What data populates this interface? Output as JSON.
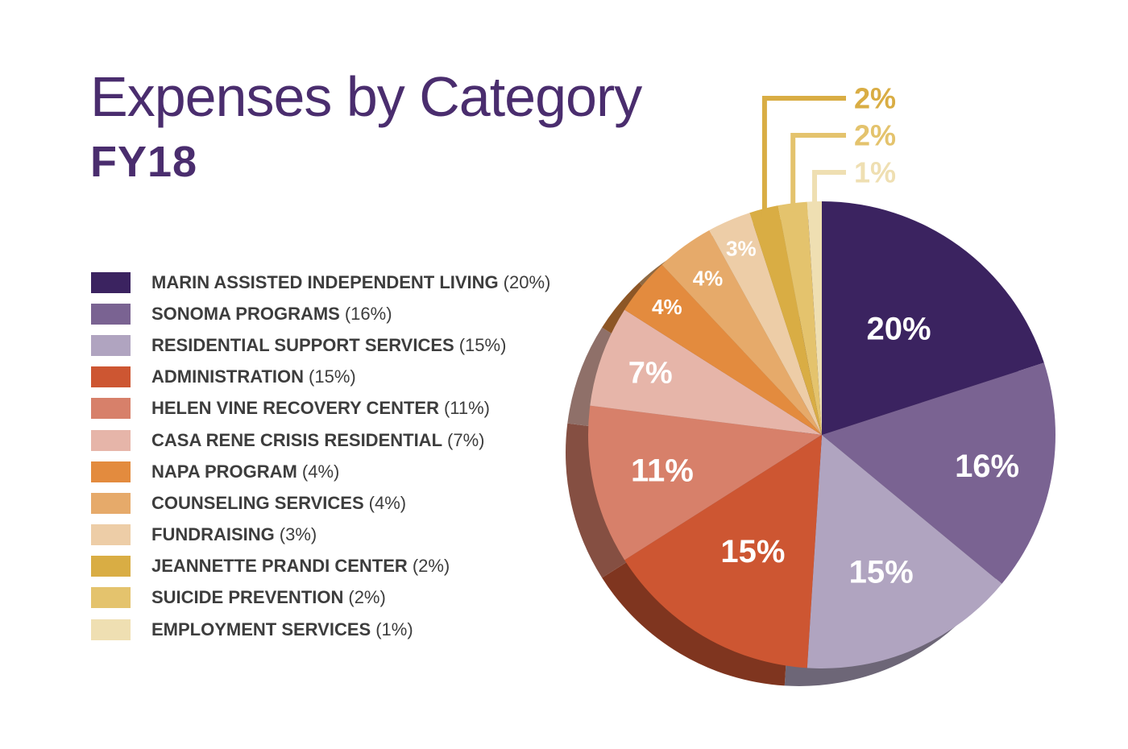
{
  "chart_data": {
    "type": "pie",
    "title": "Expenses by Category",
    "subtitle": "FY18",
    "unit": "%",
    "slices": [
      {
        "name": "MARIN ASSISTED INDEPENDENT LIVING",
        "value": 20,
        "legend_value": "(20%)",
        "label": "20%",
        "color": "#3b2360"
      },
      {
        "name": "SONOMA PROGRAMS",
        "value": 16,
        "legend_value": "(16%)",
        "label": "16%",
        "color": "#7a6392"
      },
      {
        "name": "RESIDENTIAL SUPPORT SERVICES",
        "value": 15,
        "legend_value": "(15%)",
        "label": "15%",
        "color": "#b0a4c0"
      },
      {
        "name": "ADMINISTRATION",
        "value": 15,
        "legend_value": "(15%)",
        "label": "15%",
        "color": "#cd5632"
      },
      {
        "name": "HELEN VINE RECOVERY CENTER",
        "value": 11,
        "legend_value": "(11%)",
        "label": "11%",
        "color": "#d7806a"
      },
      {
        "name": "CASA RENE CRISIS RESIDENTIAL",
        "value": 7,
        "legend_value": "(7%)",
        "label": "7%",
        "color": "#e6b5a9"
      },
      {
        "name": "NAPA PROGRAM",
        "value": 4,
        "legend_value": "(4%)",
        "label": "4%",
        "color": "#e38b3e"
      },
      {
        "name": "COUNSELING SERVICES",
        "value": 4,
        "legend_value": "(4%)",
        "label": "4%",
        "color": "#e6aa6a"
      },
      {
        "name": "FUNDRAISING",
        "value": 3,
        "legend_value": "(3%)",
        "label": "3%",
        "color": "#edcda7"
      },
      {
        "name": "JEANNETTE PRANDI CENTER",
        "value": 2,
        "legend_value": "(2%)",
        "label": "2%",
        "color": "#d9ad44"
      },
      {
        "name": "SUICIDE PREVENTION",
        "value": 2,
        "legend_value": "(2%)",
        "label": "2%",
        "color": "#e4c36d"
      },
      {
        "name": "EMPLOYMENT SERVICES",
        "value": 1,
        "legend_value": "(1%)",
        "label": "1%",
        "color": "#efdfb2"
      }
    ],
    "legend_position": "left"
  }
}
